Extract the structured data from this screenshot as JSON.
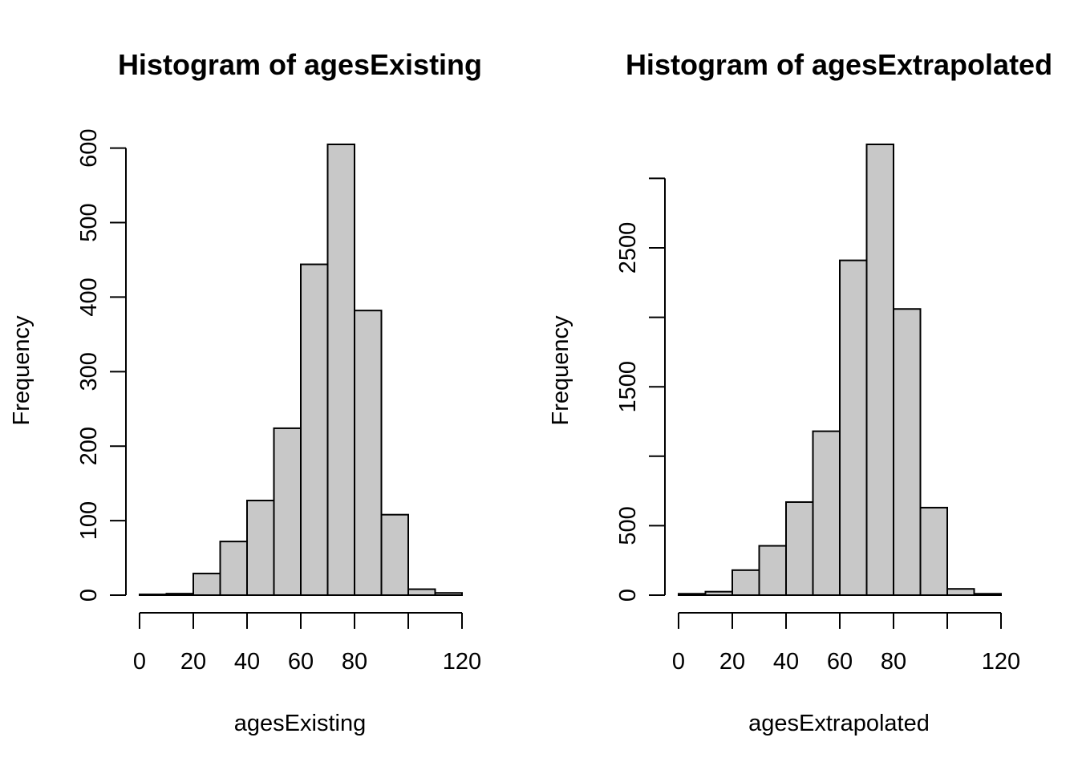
{
  "colors": {
    "bar_fill": "#c8c8c8",
    "bar_stroke": "#000000",
    "text": "#000000",
    "background": "#ffffff"
  },
  "chart_data": [
    {
      "type": "bar",
      "title": "Histogram of agesExisting",
      "xlabel": "agesExisting",
      "ylabel": "Frequency",
      "bin_edges": [
        0,
        10,
        20,
        30,
        40,
        50,
        60,
        70,
        80,
        90,
        100,
        110,
        120
      ],
      "values": [
        1,
        2,
        29,
        72,
        127,
        224,
        444,
        605,
        382,
        108,
        8,
        3
      ],
      "xlim": [
        0,
        120
      ],
      "ylim": [
        0,
        605
      ],
      "x_ticks": [
        0,
        20,
        40,
        60,
        80,
        120
      ],
      "x_tick_labels": [
        "0",
        "20",
        "40",
        "60",
        "80",
        "120"
      ],
      "y_ticks": [
        0,
        100,
        200,
        300,
        400,
        500,
        600
      ],
      "y_tick_labels": [
        "0",
        "100",
        "200",
        "300",
        "400",
        "500",
        "600"
      ],
      "x_axis_extra_ticks": [
        100
      ],
      "grid": false
    },
    {
      "type": "bar",
      "title": "Histogram of agesExtrapolated",
      "xlabel": "agesExtrapolated",
      "ylabel": "Frequency",
      "bin_edges": [
        0,
        10,
        20,
        30,
        40,
        50,
        60,
        70,
        80,
        90,
        100,
        110,
        120
      ],
      "values": [
        10,
        25,
        180,
        355,
        670,
        1180,
        2410,
        3245,
        2060,
        630,
        45,
        10
      ],
      "xlim": [
        0,
        120
      ],
      "ylim": [
        0,
        3245
      ],
      "x_ticks": [
        0,
        20,
        40,
        60,
        80,
        120
      ],
      "x_tick_labels": [
        "0",
        "20",
        "40",
        "60",
        "80",
        "120"
      ],
      "y_ticks": [
        0,
        500,
        1000,
        1500,
        2000,
        2500,
        3000
      ],
      "y_tick_labels": [
        "0",
        "500",
        "",
        "1500",
        "",
        "2500",
        ""
      ],
      "x_axis_extra_ticks": [
        100
      ],
      "grid": false
    }
  ]
}
